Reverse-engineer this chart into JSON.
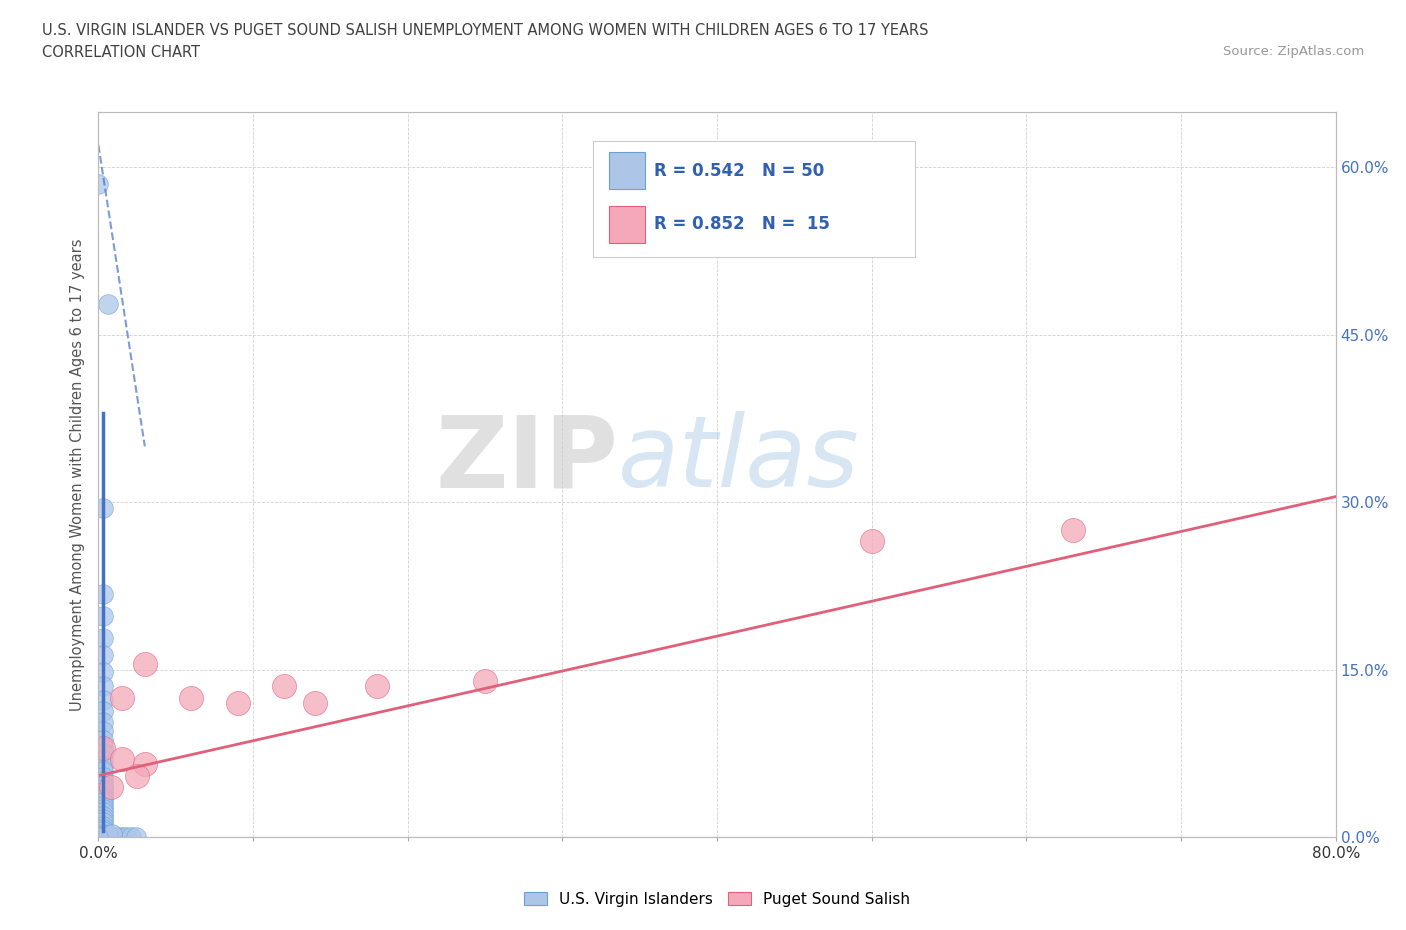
{
  "title_line1": "U.S. VIRGIN ISLANDER VS PUGET SOUND SALISH UNEMPLOYMENT AMONG WOMEN WITH CHILDREN AGES 6 TO 17 YEARS",
  "title_line2": "CORRELATION CHART",
  "source": "Source: ZipAtlas.com",
  "ylabel": "Unemployment Among Women with Children Ages 6 to 17 years",
  "xlim": [
    0.0,
    0.8
  ],
  "ylim": [
    0.0,
    0.65
  ],
  "xticks": [
    0.0,
    0.1,
    0.2,
    0.3,
    0.4,
    0.5,
    0.6,
    0.7,
    0.8
  ],
  "xticklabels": [
    "0.0%",
    "",
    "",
    "",
    "",
    "",
    "",
    "",
    "80.0%"
  ],
  "ytick_positions": [
    0.0,
    0.15,
    0.3,
    0.45,
    0.6
  ],
  "yticklabels_right": [
    "0.0%",
    "15.0%",
    "30.0%",
    "45.0%",
    "60.0%"
  ],
  "legend1_label": "R = 0.542   N = 50",
  "legend2_label": "R = 0.852   N =  15",
  "legend_bottom1": "U.S. Virgin Islanders",
  "legend_bottom2": "Puget Sound Salish",
  "blue_color": "#adc6e8",
  "pink_color": "#f4a8b8",
  "blue_edge_color": "#6a9fd8",
  "pink_edge_color": "#e06080",
  "blue_line_color": "#4472c4",
  "pink_line_color": "#e0607a",
  "blue_scatter": [
    [
      0.0,
      0.585
    ],
    [
      0.006,
      0.478
    ],
    [
      0.003,
      0.295
    ],
    [
      0.003,
      0.218
    ],
    [
      0.003,
      0.198
    ],
    [
      0.003,
      0.178
    ],
    [
      0.003,
      0.163
    ],
    [
      0.003,
      0.148
    ],
    [
      0.003,
      0.135
    ],
    [
      0.003,
      0.123
    ],
    [
      0.003,
      0.113
    ],
    [
      0.003,
      0.103
    ],
    [
      0.003,
      0.095
    ],
    [
      0.003,
      0.087
    ],
    [
      0.003,
      0.081
    ],
    [
      0.003,
      0.075
    ],
    [
      0.003,
      0.069
    ],
    [
      0.003,
      0.064
    ],
    [
      0.003,
      0.059
    ],
    [
      0.003,
      0.054
    ],
    [
      0.003,
      0.05
    ],
    [
      0.003,
      0.046
    ],
    [
      0.003,
      0.043
    ],
    [
      0.003,
      0.04
    ],
    [
      0.003,
      0.037
    ],
    [
      0.003,
      0.034
    ],
    [
      0.003,
      0.031
    ],
    [
      0.003,
      0.028
    ],
    [
      0.003,
      0.025
    ],
    [
      0.003,
      0.022
    ],
    [
      0.003,
      0.019
    ],
    [
      0.003,
      0.016
    ],
    [
      0.003,
      0.013
    ],
    [
      0.003,
      0.01
    ],
    [
      0.003,
      0.007
    ],
    [
      0.003,
      0.005
    ],
    [
      0.003,
      0.003
    ],
    [
      0.003,
      0.001
    ],
    [
      0.003,
      0.0
    ],
    [
      0.006,
      0.0
    ],
    [
      0.009,
      0.0
    ],
    [
      0.012,
      0.0
    ],
    [
      0.015,
      0.0
    ],
    [
      0.018,
      0.0
    ],
    [
      0.021,
      0.0
    ],
    [
      0.024,
      0.0
    ],
    [
      0.003,
      0.001
    ],
    [
      0.006,
      0.002
    ],
    [
      0.009,
      0.003
    ],
    [
      0.0,
      0.0
    ]
  ],
  "pink_scatter": [
    [
      0.003,
      0.08
    ],
    [
      0.015,
      0.125
    ],
    [
      0.03,
      0.155
    ],
    [
      0.06,
      0.125
    ],
    [
      0.09,
      0.12
    ],
    [
      0.12,
      0.135
    ],
    [
      0.14,
      0.12
    ],
    [
      0.18,
      0.135
    ],
    [
      0.25,
      0.14
    ],
    [
      0.015,
      0.07
    ],
    [
      0.03,
      0.065
    ],
    [
      0.025,
      0.055
    ],
    [
      0.5,
      0.265
    ],
    [
      0.63,
      0.275
    ],
    [
      0.008,
      0.045
    ]
  ],
  "blue_trendline_dashed": [
    [
      0.0,
      0.62
    ],
    [
      0.03,
      0.35
    ]
  ],
  "blue_trendline_solid": [
    [
      0.003,
      0.38
    ],
    [
      0.003,
      0.005
    ]
  ],
  "pink_trendline": [
    [
      0.0,
      0.055
    ],
    [
      0.8,
      0.305
    ]
  ],
  "grid_color": "#cccccc",
  "background_color": "#ffffff"
}
